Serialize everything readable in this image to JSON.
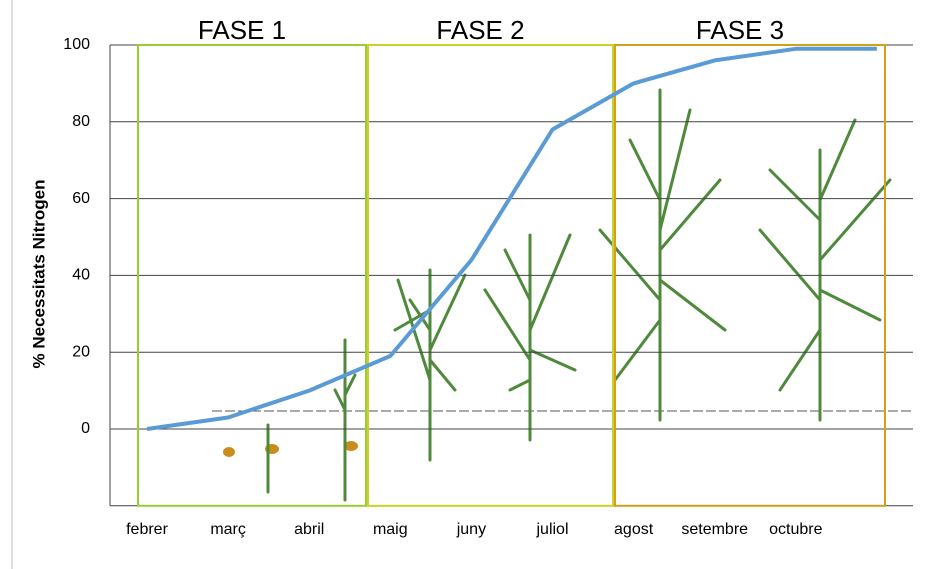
{
  "chart_data": {
    "type": "line",
    "y_axis_label": "% Necessitats Nitrogen",
    "categories": [
      "febrer",
      "març",
      "abril",
      "maig",
      "juny",
      "juliol",
      "agost",
      "setembre",
      "octubre",
      null
    ],
    "values": [
      0,
      3,
      10,
      19,
      44,
      78,
      90,
      96,
      99,
      99
    ],
    "color": "#5b9bd5",
    "ylim": [
      -20,
      100
    ],
    "yticks": [
      0,
      20,
      40,
      60,
      80,
      100
    ],
    "grid": true,
    "phases": [
      {
        "label": "FASE 1",
        "color": "#9acd32"
      },
      {
        "label": "FASE 2",
        "color": "#c9d12a"
      },
      {
        "label": "FASE 3",
        "color": "#d4a017"
      }
    ]
  }
}
